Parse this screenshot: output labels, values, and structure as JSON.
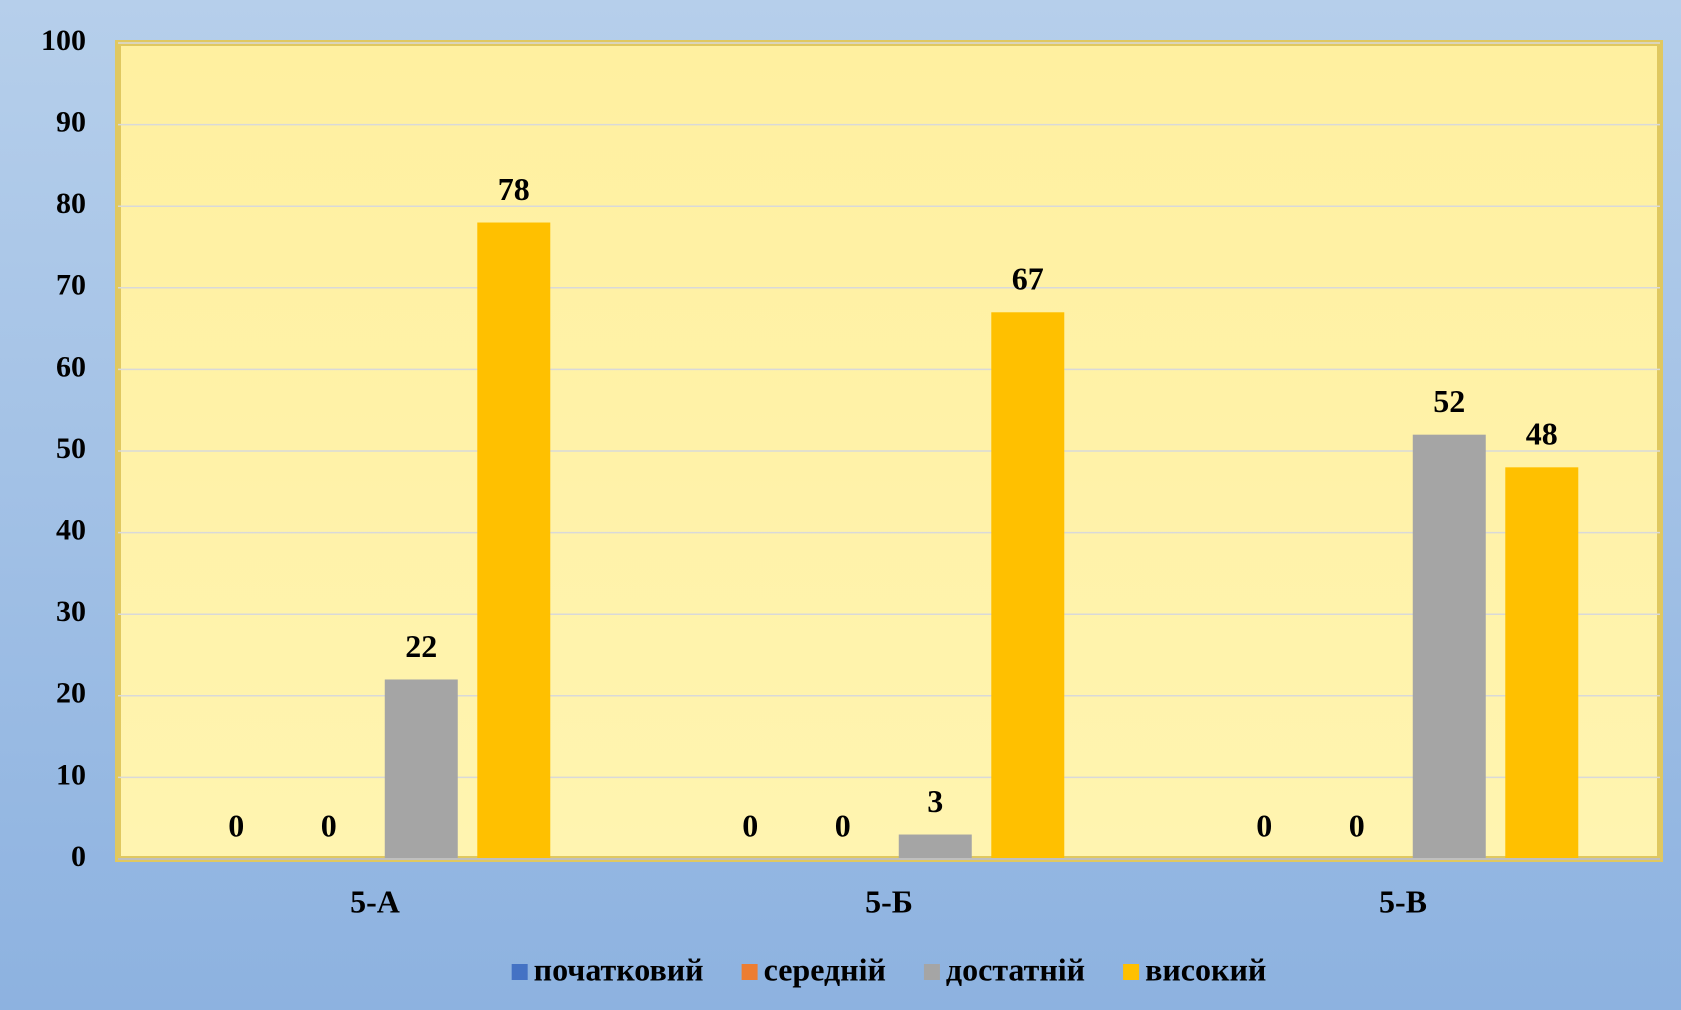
{
  "chart_data": {
    "type": "bar",
    "categories": [
      "5-А",
      "5-Б",
      "5-В"
    ],
    "series": [
      {
        "name": "початковий",
        "color": "#4472c4",
        "values": [
          0,
          0,
          0
        ]
      },
      {
        "name": "середній",
        "color": "#ed7d31",
        "values": [
          0,
          0,
          0
        ]
      },
      {
        "name": "достатній",
        "color": "#a5a5a5",
        "values": [
          22,
          3,
          52
        ]
      },
      {
        "name": "високий",
        "color": "#ffc000",
        "values": [
          78,
          67,
          48
        ]
      }
    ],
    "ylim": [
      0,
      100
    ],
    "yticks": [
      0,
      10,
      20,
      30,
      40,
      50,
      60,
      70,
      80,
      90,
      100
    ],
    "grid": true,
    "legend": "bottom"
  }
}
